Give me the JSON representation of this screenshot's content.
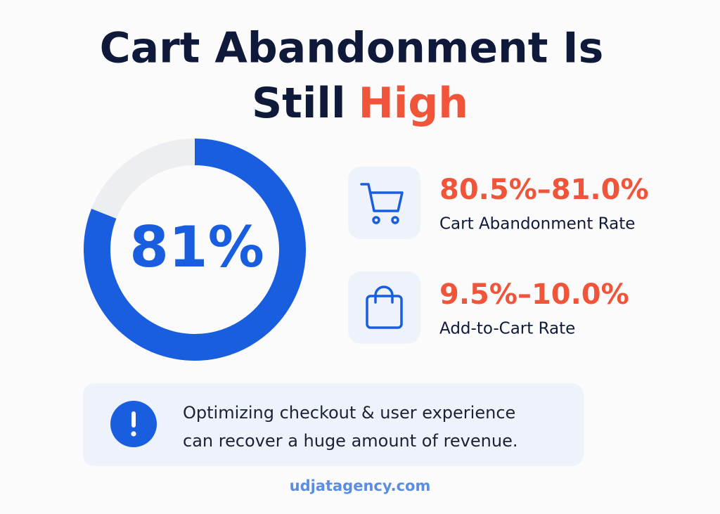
{
  "title": {
    "line1": "Cart Abandonment Is",
    "line2_start": "Still",
    "line2_highlight": "High"
  },
  "donut": {
    "value": 81,
    "label": "81%",
    "color": "#1a5ee0",
    "track_color": "#eceef1"
  },
  "stats": [
    {
      "value": "80.5%–81.0%",
      "label": "Cart Abandonment Rate"
    },
    {
      "value": "9.5%–10.0%",
      "label": "Add-to-Cart Rate"
    }
  ],
  "callout": {
    "line1": "Optimizing checkout & user experience",
    "line2": "can recover a huge amount of revenue."
  },
  "footer": "udjatagency.com"
}
